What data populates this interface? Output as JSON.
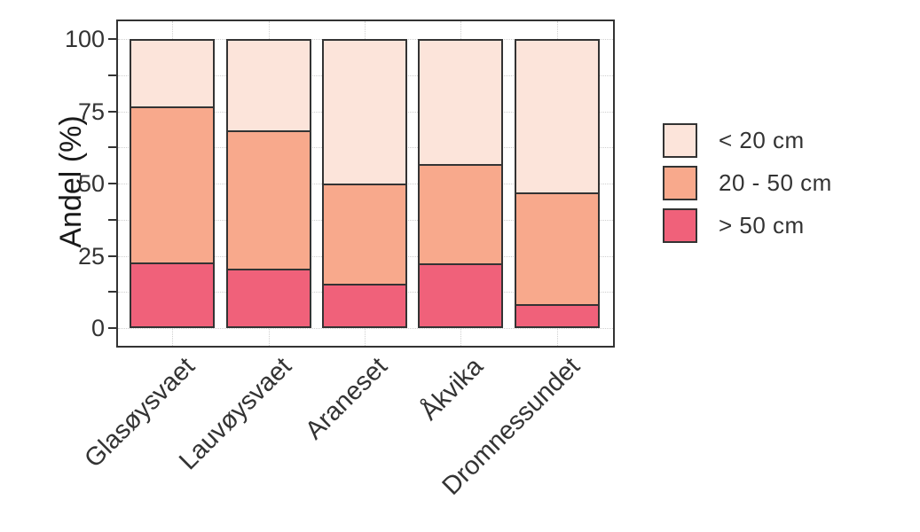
{
  "figure": {
    "background": "#ffffff",
    "panel_border_color": "#333333",
    "grid_color": "#cfcfcf",
    "text_color": "#333333",
    "bar_outline_color": "#333333"
  },
  "chart_data": {
    "type": "bar",
    "stacked": true,
    "orientation": "vertical",
    "title": "",
    "xlabel": "",
    "ylabel": "Andel (%)",
    "ylim": [
      0,
      100
    ],
    "yticks_major": [
      0,
      25,
      50,
      75,
      100
    ],
    "yticks_minor": [
      12.5,
      37.5,
      62.5,
      87.5
    ],
    "grid": "dotted, major and minor horizontal lines plus vertical lines at category centers",
    "legend_position": "right of plot",
    "categories": [
      "Glasøysvaet",
      "Lauvøysvaet",
      "Araneset",
      "Åkvika",
      "Dromnessundet"
    ],
    "series": [
      {
        "name": "< 20 cm",
        "color": "#fce4da",
        "values": [
          23.4,
          31.7,
          50.1,
          43.3,
          53.2
        ]
      },
      {
        "name": "20 - 50 cm",
        "color": "#f8a98c",
        "values": [
          54.0,
          47.7,
          34.6,
          34.4,
          38.6
        ]
      },
      {
        "name": "> 50 cm",
        "color": "#f0617a",
        "values": [
          22.6,
          20.6,
          15.3,
          22.3,
          8.2
        ]
      }
    ],
    "stacking_note": "series are stacked bottom-to-top in reverse legend order: > 50 cm at bottom, then 20 - 50 cm, then < 20 cm on top; every column totals 100"
  }
}
